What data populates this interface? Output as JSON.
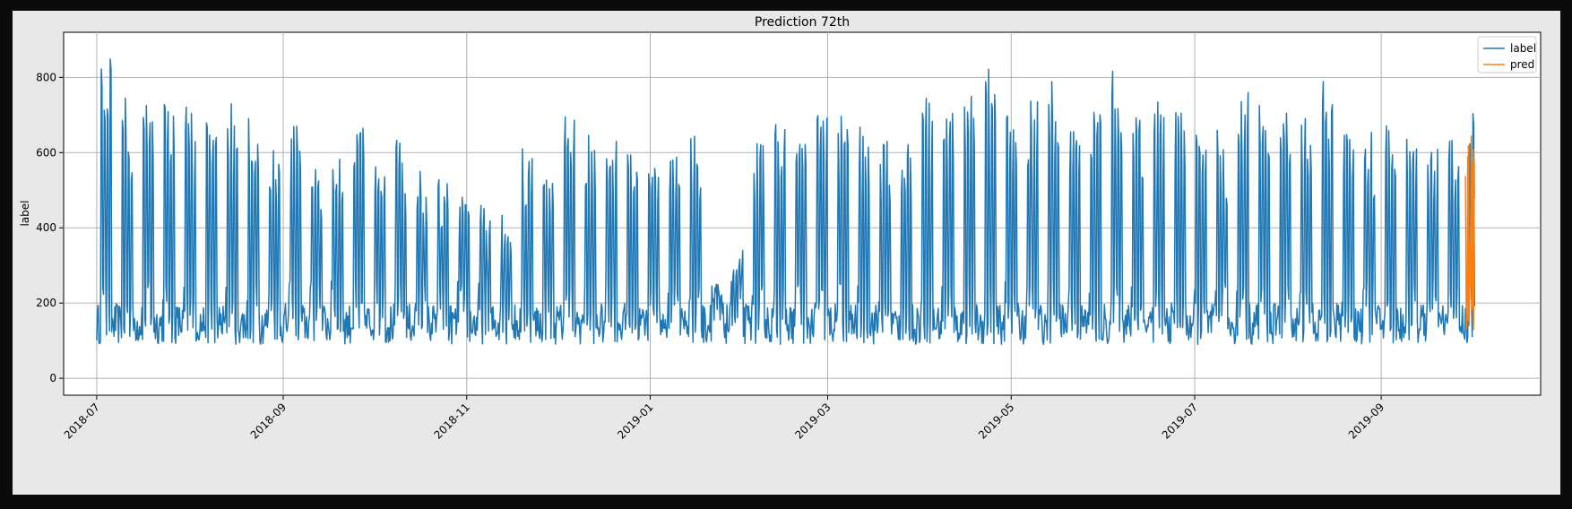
{
  "chart_data": {
    "type": "line",
    "title": "Prediction 72th",
    "xlabel": "",
    "ylabel": "label",
    "x_range": [
      "2018-06-20",
      "2019-10-24"
    ],
    "ylim": [
      -45,
      920
    ],
    "x_ticks": [
      "2018-07",
      "2018-09",
      "2018-11",
      "2019-01",
      "2019-03",
      "2019-05",
      "2019-07",
      "2019-09"
    ],
    "y_ticks": [
      0,
      200,
      400,
      600,
      800
    ],
    "grid": true,
    "legend_position": "top-right",
    "series": [
      {
        "name": "label",
        "color": "#1f77b4",
        "x_start": "2018-07-01",
        "x_end": "2019-10-02",
        "weekly_peak_dates": [
          "2018-07-02",
          "2018-07-09",
          "2018-07-16",
          "2018-07-23",
          "2018-07-30",
          "2018-08-06",
          "2018-08-13",
          "2018-08-20",
          "2018-08-27",
          "2018-09-03",
          "2018-09-10",
          "2018-09-17",
          "2018-09-24",
          "2018-10-01",
          "2018-10-08",
          "2018-10-15",
          "2018-10-22",
          "2018-10-29",
          "2018-11-05",
          "2018-11-12",
          "2018-11-19",
          "2018-11-26",
          "2018-12-03",
          "2018-12-10",
          "2018-12-17",
          "2018-12-24",
          "2018-12-31",
          "2019-01-07",
          "2019-01-14",
          "2019-01-21",
          "2019-01-28",
          "2019-02-04",
          "2019-02-11",
          "2019-02-18",
          "2019-02-25",
          "2019-03-04",
          "2019-03-11",
          "2019-03-18",
          "2019-03-25",
          "2019-04-01",
          "2019-04-08",
          "2019-04-15",
          "2019-04-22",
          "2019-04-29",
          "2019-05-06",
          "2019-05-13",
          "2019-05-20",
          "2019-05-27",
          "2019-06-03",
          "2019-06-10",
          "2019-06-17",
          "2019-06-24",
          "2019-07-01",
          "2019-07-08",
          "2019-07-15",
          "2019-07-22",
          "2019-07-29",
          "2019-08-05",
          "2019-08-12",
          "2019-08-19",
          "2019-08-26",
          "2019-09-02",
          "2019-09-09",
          "2019-09-16",
          "2019-09-23",
          "2019-09-30"
        ],
        "weekly_peak_values": [
          880,
          750,
          750,
          775,
          735,
          680,
          755,
          715,
          640,
          690,
          630,
          650,
          685,
          680,
          640,
          560,
          540,
          495,
          465,
          445,
          615,
          560,
          745,
          660,
          670,
          670,
          675,
          685,
          655,
          285,
          370,
          650,
          680,
          700,
          745,
          725,
          690,
          650,
          645,
          760,
          770,
          760,
          845,
          775,
          760,
          815,
          760,
          730,
          830,
          760,
          745,
          735,
          680,
          665,
          790,
          790,
          780,
          710,
          790,
          725,
          715,
          705,
          695,
          640,
          660,
          750
        ],
        "baseline_min": 90,
        "baseline_max": 200
      },
      {
        "name": "pred",
        "color": "#ff7f0e",
        "x_start": "2019-09-29",
        "x_end": "2019-10-02",
        "min": 120,
        "max": 650
      }
    ]
  }
}
